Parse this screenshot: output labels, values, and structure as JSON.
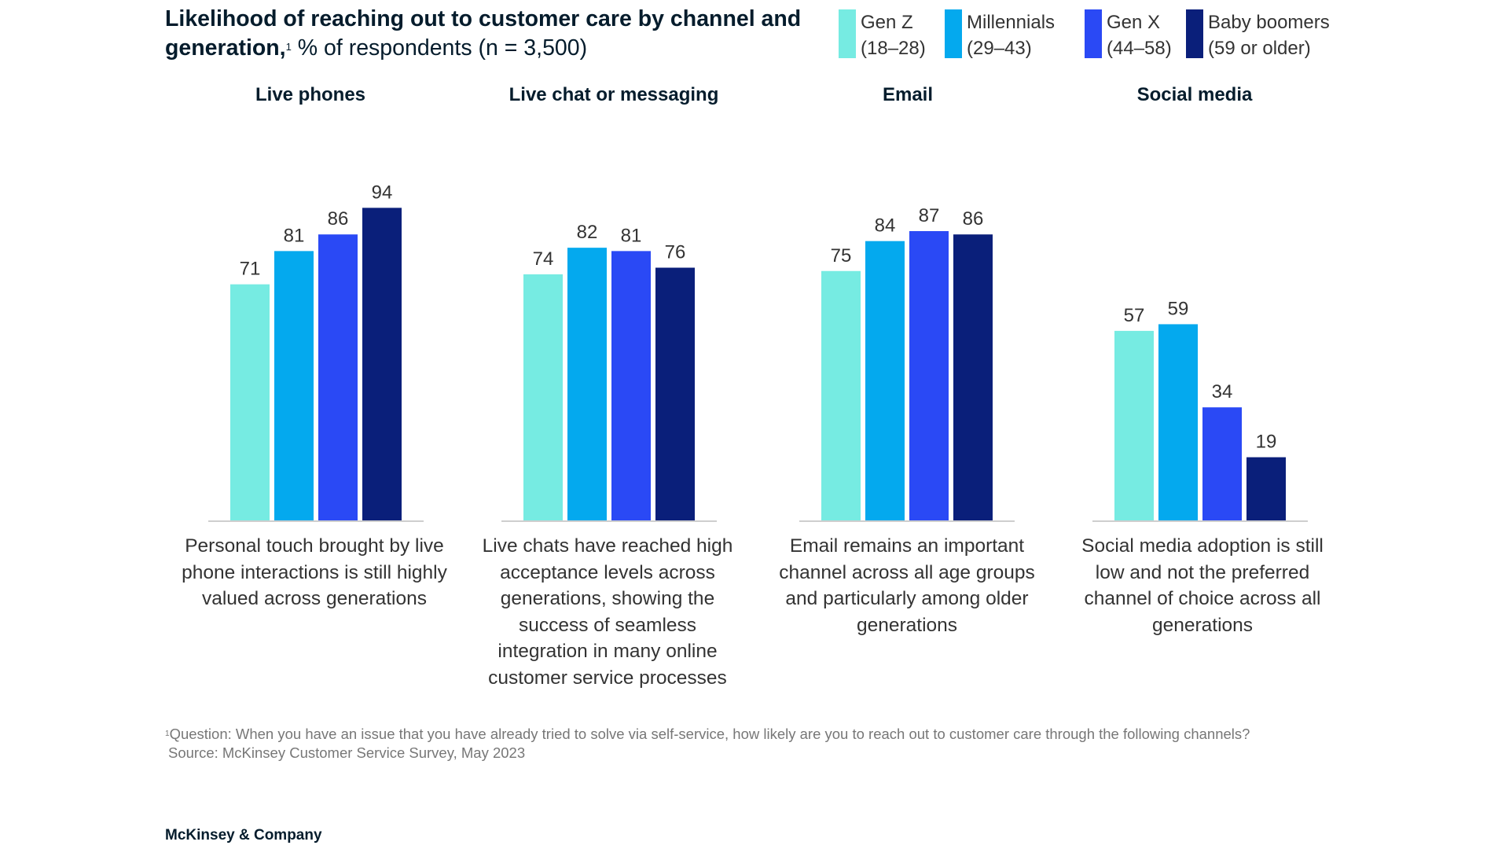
{
  "title": {
    "bold": "Likelihood of reaching out to customer care by channel and generation,",
    "footnote_mark": "1",
    "rest": " % of respondents (n = 3,500)"
  },
  "legend": [
    {
      "label_line1": "Gen Z",
      "label_line2": "(18–28)",
      "color": "#76ebe2"
    },
    {
      "label_line1": "Millennials",
      "label_line2": "(29–43)",
      "color": "#04a9ee"
    },
    {
      "label_line1": "Gen X",
      "label_line2": "(44–58)",
      "color": "#2a49f5"
    },
    {
      "label_line1": "Baby boomers",
      "label_line2": "(59 or older)",
      "color": "#0a1f7a"
    }
  ],
  "chart_data": {
    "type": "bar",
    "title": "Likelihood of reaching out to customer care by channel and generation, % of respondents (n = 3,500)",
    "categories": [
      "Live phones",
      "Live chat or messaging",
      "Email",
      "Social media"
    ],
    "series": [
      {
        "name": "Gen Z (18–28)",
        "color": "#76ebe2",
        "values": [
          71,
          74,
          75,
          57
        ]
      },
      {
        "name": "Millennials (29–43)",
        "color": "#04a9ee",
        "values": [
          81,
          82,
          84,
          59
        ]
      },
      {
        "name": "Gen X (44–58)",
        "color": "#2a49f5",
        "values": [
          86,
          81,
          87,
          34
        ]
      },
      {
        "name": "Baby boomers (59 or older)",
        "color": "#0a1f7a",
        "values": [
          94,
          76,
          86,
          19
        ]
      }
    ],
    "ylim": [
      0,
      100
    ],
    "grid": false,
    "legend_position": "top-right",
    "data_labels": true
  },
  "captions": [
    "Personal touch brought by live phone interactions is still highly valued across generations",
    "Live chats have reached high acceptance levels across generations, showing the success of seamless integration in many online customer service processes",
    "Email remains an important channel across all age groups and particularly among older generations",
    "Social media adoption is still low and not the preferred channel of choice across all generations"
  ],
  "footnote": {
    "mark": "1",
    "question": "Question: When you have an issue that you have already tried to solve via self-service, how likely are you to reach out to customer care through the following channels?",
    "source": "Source: McKinsey Customer Service Survey, May 2023"
  },
  "brand": "McKinsey & Company"
}
